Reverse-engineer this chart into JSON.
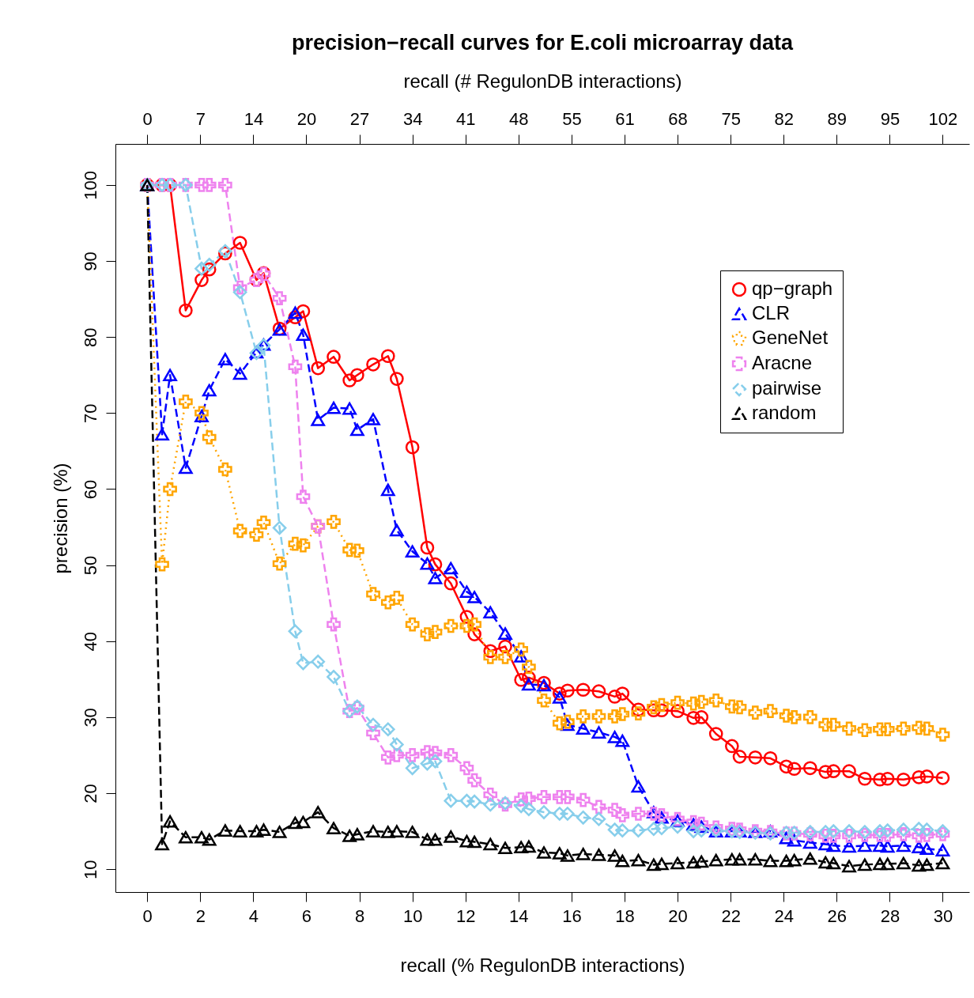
{
  "chart_data": {
    "type": "line",
    "title": "precision−recall curves for E.coli microarray data",
    "xlabel": "recall (% RegulonDB interactions)",
    "x2label": "recall (# RegulonDB interactions)",
    "ylabel": "precision (%)",
    "legend": "top right",
    "xlim": [
      -1.2,
      31.0
    ],
    "xticks": [
      0,
      2,
      4,
      6,
      8,
      10,
      12,
      14,
      16,
      18,
      20,
      22,
      24,
      26,
      28,
      30
    ],
    "x2lim": [
      -4.09,
      105.71
    ],
    "x2ticks": [
      0,
      {
        "value": 6.82,
        "label": "7"
      },
      {
        "value": 13.64,
        "label": "14"
      },
      {
        "value": 20.46,
        "label": "20"
      },
      {
        "value": 27.28,
        "label": "27"
      },
      {
        "value": 34.1,
        "label": "34"
      },
      {
        "value": 40.92,
        "label": "41"
      },
      {
        "value": 47.74,
        "label": "48"
      },
      {
        "value": 54.56,
        "label": "55"
      },
      {
        "value": 61.38,
        "label": "61"
      },
      {
        "value": 68.2,
        "label": "68"
      },
      {
        "value": 75.02,
        "label": "75"
      },
      {
        "value": 81.84,
        "label": "82"
      },
      {
        "value": 88.66,
        "label": "89"
      },
      {
        "value": 95.48,
        "label": "95"
      },
      {
        "value": 102.3,
        "label": "102"
      }
    ],
    "ylim": [
      7,
      105.4
    ],
    "yticks": [
      10,
      20,
      30,
      40,
      50,
      60,
      70,
      80,
      90,
      100
    ],
    "x": [
      0,
      0.56,
      0.86,
      1.45,
      2.05,
      2.34,
      2.94,
      3.5,
      4.12,
      4.39,
      4.99,
      5.58,
      5.88,
      6.44,
      7.03,
      7.63,
      7.92,
      8.52,
      9.08,
      9.41,
      10,
      10.56,
      10.86,
      11.45,
      12.05,
      12.34,
      12.94,
      13.5,
      14.1,
      14.39,
      14.96,
      15.55,
      15.85,
      16.44,
      17.03,
      17.63,
      17.92,
      18.52,
      19.1,
      19.4,
      20,
      20.6,
      20.9,
      21.45,
      22.05,
      22.34,
      22.93,
      23.5,
      24.1,
      24.4,
      25,
      25.58,
      25.88,
      26.47,
      27.06,
      27.63,
      27.92,
      28.52,
      29.1,
      29.4,
      30
    ],
    "series": [
      {
        "name": "qp−graph",
        "color": "#ff0000",
        "marker": "circle",
        "line_style": "solid",
        "values": [
          100,
          100,
          100,
          83.5,
          87.5,
          88.9,
          91,
          92.4,
          87.5,
          88.4,
          81.1,
          82.6,
          83.4,
          75.9,
          77.4,
          74.3,
          75,
          76.4,
          77.5,
          74.5,
          65.5,
          52.3,
          50.1,
          47.6,
          43.2,
          40.9,
          38.7,
          39.3,
          34.9,
          35.2,
          34.5,
          33.1,
          33.5,
          33.6,
          33.4,
          32.7,
          33.1,
          31,
          30.9,
          30.9,
          30.8,
          29.9,
          30,
          27.8,
          26.2,
          24.8,
          24.7,
          24.6,
          23.5,
          23.2,
          23.3,
          22.8,
          22.9,
          22.9,
          21.9,
          21.8,
          21.9,
          21.8,
          22.1,
          22.2,
          22
        ]
      },
      {
        "name": "CLR",
        "color": "#0000ff",
        "marker": "triangle",
        "line_style": "dashed",
        "values": [
          100,
          67.2,
          75,
          62.8,
          69.6,
          73,
          77.1,
          75.2,
          78,
          79,
          81,
          83.2,
          80.3,
          69.1,
          70.7,
          70.6,
          67.8,
          69.2,
          59.9,
          54.6,
          51.8,
          50.2,
          48.3,
          49.6,
          46.5,
          45.8,
          43.8,
          41,
          38,
          34.3,
          34.2,
          32.6,
          29,
          28.5,
          28,
          27.4,
          26.9,
          20.9,
          17.5,
          16.8,
          16.4,
          15.9,
          15.6,
          15,
          15,
          15,
          14.9,
          15,
          14.1,
          13.8,
          13.5,
          13.3,
          13.1,
          13,
          13.1,
          13.1,
          13,
          13.1,
          12.9,
          12.7,
          12.5
        ]
      },
      {
        "name": "GeneNet",
        "color": "#ffa500",
        "marker": "cross",
        "line_style": "dotted",
        "values": [
          100,
          50.1,
          60,
          71.5,
          70,
          66.8,
          62.6,
          54.5,
          54,
          55.6,
          50.2,
          52.8,
          52.6,
          55.1,
          55.7,
          52,
          51.9,
          46.2,
          45.1,
          45.7,
          42.2,
          40.9,
          41.2,
          42,
          42,
          42.2,
          37.9,
          37.9,
          38.9,
          36.6,
          32.2,
          29.2,
          29.4,
          30.1,
          30.1,
          30.1,
          30.4,
          30.5,
          31.3,
          31.6,
          31.9,
          31.8,
          32,
          32.2,
          31.4,
          31.3,
          30.6,
          30.8,
          30.2,
          30,
          30,
          29,
          29,
          28.5,
          28.3,
          28.4,
          28.4,
          28.5,
          28.6,
          28.5,
          27.7
        ]
      },
      {
        "name": "Aracne",
        "color": "#ee82ee",
        "marker": "cross",
        "line_style": "dashed",
        "values": [
          100,
          100,
          100,
          100,
          100,
          100,
          100,
          86.5,
          87.5,
          88.3,
          85.1,
          76.1,
          59,
          55.1,
          42.2,
          30.8,
          31.2,
          27.9,
          24.7,
          25,
          25,
          25.4,
          25.3,
          25,
          23.3,
          21.7,
          19.8,
          18.5,
          19.2,
          19.3,
          19.5,
          19.5,
          19.5,
          19.1,
          18.2,
          17.8,
          17.1,
          17.3,
          17.3,
          17.1,
          16.6,
          16.2,
          16,
          15.5,
          15.3,
          15.2,
          15,
          14.9,
          14.7,
          14.7,
          14.6,
          14.4,
          14.4,
          14.4,
          14.5,
          14.5,
          14.5,
          14.6,
          14.4,
          14.5,
          14.6
        ]
      },
      {
        "name": "pairwise",
        "color": "#87ceeb",
        "marker": "diamond",
        "line_style": "dashed",
        "values": [
          100,
          100,
          100,
          100,
          89,
          89.5,
          91.3,
          85.9,
          77.9,
          78.9,
          54.9,
          41.3,
          37.1,
          37.3,
          35.3,
          30.8,
          31.4,
          29,
          28.4,
          26.4,
          23.3,
          23.9,
          24.2,
          19,
          19,
          18.9,
          18.5,
          18.7,
          18.3,
          17.9,
          17.5,
          17.3,
          17.3,
          16.8,
          16.6,
          15.2,
          15.1,
          15.1,
          15.3,
          15.4,
          15.6,
          15,
          15.1,
          15.1,
          15,
          14.9,
          14.8,
          14.7,
          14.8,
          14.8,
          14.9,
          14.9,
          15,
          15,
          14.9,
          15,
          15.1,
          15.2,
          15.3,
          15.2,
          15
        ]
      },
      {
        "name": "random",
        "color": "#000000",
        "marker": "triangle",
        "line_style": "dashed",
        "values": [
          100,
          13.3,
          16.3,
          14.2,
          14.2,
          13.9,
          15.1,
          15,
          15,
          15.2,
          14.9,
          16.1,
          16.2,
          17.5,
          15.4,
          14.4,
          14.6,
          15,
          14.9,
          15,
          14.9,
          13.9,
          13.9,
          14.3,
          13.7,
          13.6,
          13.3,
          12.8,
          12.9,
          13,
          12.2,
          12.1,
          11.8,
          12,
          11.9,
          11.8,
          11.1,
          11.2,
          10.6,
          10.7,
          10.8,
          10.9,
          11,
          11.2,
          11.3,
          11.3,
          11.3,
          11.1,
          11.1,
          11.2,
          11.4,
          10.9,
          10.8,
          10.4,
          10.6,
          10.7,
          10.7,
          10.8,
          10.5,
          10.6,
          10.8
        ]
      }
    ]
  }
}
